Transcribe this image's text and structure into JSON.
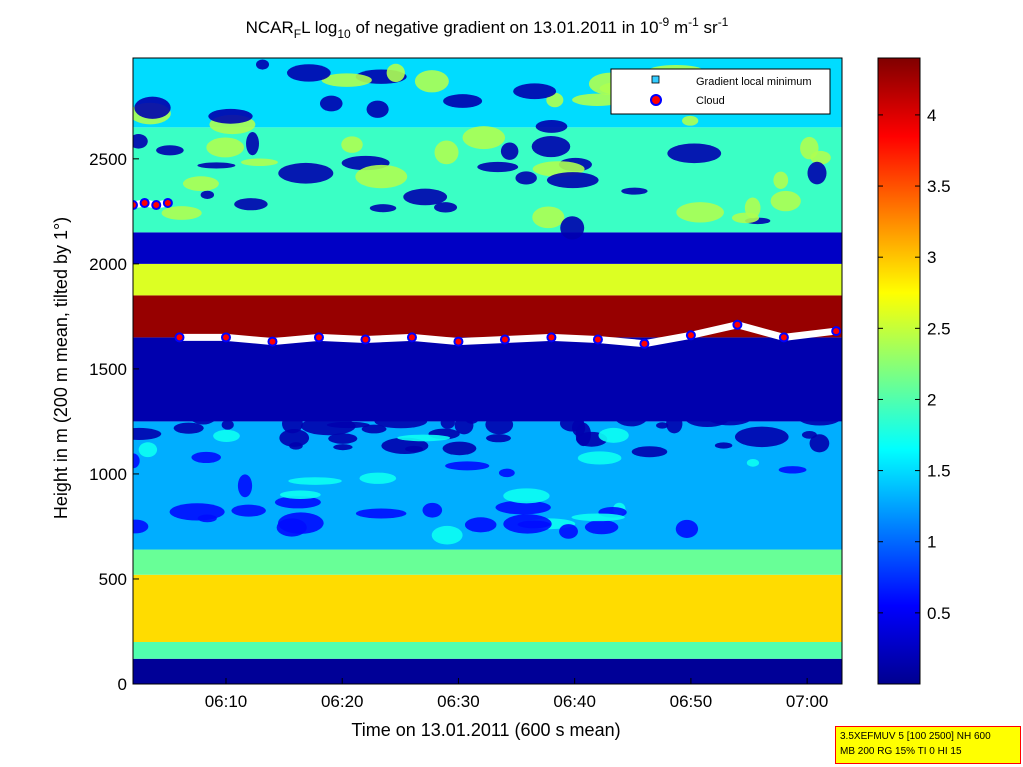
{
  "title": {
    "prefix": "NCAR",
    "sub1": "F",
    "mid1": "L log",
    "sub2": "10",
    "mid2": " of negative gradient on 13.01.2011 in 10",
    "sup1": "-9",
    "mid3": " m",
    "sup2": "-1",
    "mid4": " sr",
    "sup3": "-1"
  },
  "axes": {
    "xlabel": "Time on 13.01.2011 (600 s mean)",
    "ylabel": "Height in m (200 m mean, tilted by 1°)",
    "xticks": [
      "06:10",
      "06:20",
      "06:30",
      "06:40",
      "06:50",
      "07:00"
    ],
    "yticks": [
      "0",
      "500",
      "1000",
      "1500",
      "2000",
      "2500"
    ],
    "colorbar_ticks": [
      "0.5",
      "1",
      "1.5",
      "2",
      "2.5",
      "3",
      "3.5",
      "4"
    ]
  },
  "legend": {
    "items": [
      {
        "label": "Gradient local minimum",
        "marker": "square",
        "face": "#33ccff"
      },
      {
        "label": "Cloud",
        "marker": "circle",
        "face": "#ff0000",
        "edge": "#0000ff"
      }
    ]
  },
  "info_box": {
    "line1": "3.5XEFMUV 5 [100 2500] NH 600",
    "line2": "MB 200 RG 15% TI 0 HI 15"
  },
  "chart_data": {
    "type": "heatmap",
    "colormap": "jet",
    "x_range_minutes_after_0600": [
      2,
      63
    ],
    "y_range_m": [
      0,
      2980
    ],
    "color_range": [
      0,
      4.4
    ],
    "legend_placement": "top-right",
    "bands": [
      {
        "from_m": 0,
        "to_m": 120,
        "value": 0.1
      },
      {
        "from_m": 120,
        "to_m": 200,
        "value": 2.0
      },
      {
        "from_m": 200,
        "to_m": 520,
        "value": 2.9
      },
      {
        "from_m": 520,
        "to_m": 640,
        "value": 2.1
      },
      {
        "from_m": 640,
        "to_m": 1250,
        "value": 1.3
      },
      {
        "from_m": 1250,
        "to_m": 1650,
        "value": 0.2
      },
      {
        "from_m": 1650,
        "to_m": 1850,
        "value": 4.3
      },
      {
        "from_m": 1850,
        "to_m": 2000,
        "value": 2.6
      },
      {
        "from_m": 2000,
        "to_m": 2150,
        "value": 0.3
      },
      {
        "from_m": 2150,
        "to_m": 2650,
        "value": 1.9
      },
      {
        "from_m": 2650,
        "to_m": 2980,
        "value": 1.5
      }
    ],
    "cloud_series": {
      "name": "Cloud",
      "x_min": [
        6,
        10,
        14,
        18,
        22,
        26,
        30,
        34,
        38,
        42,
        46,
        50,
        54,
        58,
        62.5
      ],
      "y_m": [
        1650,
        1650,
        1630,
        1650,
        1640,
        1650,
        1630,
        1640,
        1650,
        1640,
        1620,
        1660,
        1710,
        1650,
        1680
      ]
    },
    "cloud_series_early": {
      "x_min": [
        2,
        3,
        4,
        5
      ],
      "y_m": [
        2280,
        2290,
        2280,
        2290
      ]
    }
  }
}
